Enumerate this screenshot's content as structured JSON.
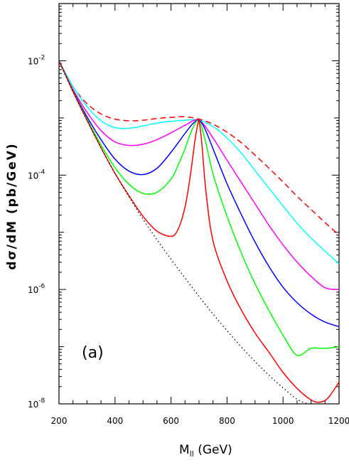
{
  "chart_data": {
    "type": "line",
    "xlabel": "M",
    "xlabel_sub": "ll",
    "xlabel_unit": "(GeV)",
    "ylabel": "dσ/dM (pb/GeV)",
    "annotation": "(a)",
    "xlim": [
      200,
      1200
    ],
    "ylim_log10": [
      -8,
      -1
    ],
    "yscale": "log",
    "grid": false,
    "x_ticks": [
      "200",
      "400",
      "600",
      "800",
      "1000",
      "1200"
    ],
    "y_ticks": [
      {
        "base": "10",
        "exp": "-2",
        "log10": -2
      },
      {
        "base": "10",
        "exp": "-4",
        "log10": -4
      },
      {
        "base": "10",
        "exp": "-6",
        "log10": -6
      },
      {
        "base": "10",
        "exp": "-8",
        "log10": -8
      }
    ],
    "series": [
      {
        "color": "#ff0000",
        "style": "dashed",
        "x": [
          200,
          250,
          300,
          350,
          400,
          450,
          500,
          550,
          600,
          650,
          700,
          750,
          800,
          850,
          900,
          950,
          1000,
          1050,
          1100,
          1150,
          1200
        ],
        "logy": [
          -2.0,
          -2.45,
          -2.75,
          -2.93,
          -3.02,
          -3.05,
          -3.04,
          -3.01,
          -2.99,
          -2.98,
          -3.02,
          -3.11,
          -3.25,
          -3.43,
          -3.65,
          -3.88,
          -4.12,
          -4.37,
          -4.6,
          -4.83,
          -5.05
        ]
      },
      {
        "color": "#00ffff",
        "style": "solid",
        "x": [
          200,
          250,
          300,
          350,
          400,
          450,
          500,
          550,
          600,
          650,
          700,
          750,
          800,
          850,
          900,
          950,
          1000,
          1050,
          1100,
          1150,
          1200
        ],
        "logy": [
          -2.0,
          -2.45,
          -2.8,
          -3.05,
          -3.17,
          -3.18,
          -3.14,
          -3.09,
          -3.06,
          -3.04,
          -3.04,
          -3.15,
          -3.35,
          -3.61,
          -3.92,
          -4.23,
          -4.54,
          -4.84,
          -5.1,
          -5.33,
          -5.55
        ]
      },
      {
        "color": "#ff00ff",
        "style": "solid",
        "x": [
          200,
          250,
          300,
          350,
          400,
          450,
          500,
          550,
          600,
          650,
          700,
          750,
          800,
          850,
          900,
          950,
          1000,
          1050,
          1100,
          1150,
          1200
        ],
        "logy": [
          -2.0,
          -2.5,
          -2.9,
          -3.22,
          -3.42,
          -3.48,
          -3.46,
          -3.38,
          -3.26,
          -3.13,
          -3.04,
          -3.35,
          -3.74,
          -4.12,
          -4.5,
          -4.88,
          -5.22,
          -5.52,
          -5.77,
          -5.97,
          -6.0
        ]
      },
      {
        "color": "#0000ff",
        "style": "solid",
        "x": [
          200,
          250,
          300,
          350,
          400,
          450,
          500,
          550,
          600,
          650,
          680,
          700,
          720,
          750,
          800,
          850,
          900,
          950,
          1000,
          1050,
          1100,
          1150,
          1200
        ],
        "logy": [
          -2.0,
          -2.52,
          -2.98,
          -3.38,
          -3.72,
          -3.93,
          -3.99,
          -3.88,
          -3.6,
          -3.27,
          -3.09,
          -3.04,
          -3.18,
          -3.54,
          -4.15,
          -4.68,
          -5.17,
          -5.6,
          -5.96,
          -6.23,
          -6.43,
          -6.57,
          -6.65
        ]
      },
      {
        "color": "#00ff00",
        "style": "solid",
        "x": [
          200,
          250,
          300,
          350,
          400,
          450,
          500,
          550,
          600,
          625,
          650,
          675,
          700,
          725,
          750,
          800,
          850,
          900,
          950,
          1000,
          1050,
          1100,
          1150,
          1200
        ],
        "logy": [
          -2.0,
          -2.53,
          -3.02,
          -3.47,
          -3.87,
          -4.16,
          -4.32,
          -4.3,
          -4.07,
          -3.83,
          -3.54,
          -3.21,
          -3.05,
          -3.45,
          -3.98,
          -4.72,
          -5.35,
          -5.9,
          -6.37,
          -6.8,
          -7.15,
          -7.03,
          -7.03,
          -7.0
        ]
      },
      {
        "color": "#ff0000",
        "style": "solid",
        "x": [
          200,
          250,
          300,
          350,
          400,
          450,
          500,
          550,
          600,
          625,
          650,
          670,
          685,
          695,
          700,
          710,
          725,
          750,
          800,
          850,
          900,
          950,
          1000,
          1050,
          1100,
          1130,
          1160,
          1200
        ],
        "logy": [
          -2.0,
          -2.54,
          -3.04,
          -3.52,
          -3.97,
          -4.36,
          -4.72,
          -4.98,
          -5.07,
          -4.95,
          -4.56,
          -3.97,
          -3.41,
          -3.12,
          -3.05,
          -3.45,
          -4.3,
          -5.15,
          -5.85,
          -6.35,
          -6.76,
          -7.1,
          -7.45,
          -7.73,
          -7.93,
          -7.97,
          -7.9,
          -7.62
        ]
      },
      {
        "color": "#000000",
        "style": "dotted",
        "x": [
          200,
          250,
          300,
          350,
          400,
          450,
          500,
          550,
          600,
          650,
          700,
          750,
          800,
          850,
          900,
          950,
          1000,
          1050,
          1090
        ],
        "logy": [
          -2.0,
          -2.54,
          -3.04,
          -3.52,
          -3.97,
          -4.38,
          -4.77,
          -5.13,
          -5.47,
          -5.8,
          -6.12,
          -6.43,
          -6.72,
          -7.0,
          -7.26,
          -7.5,
          -7.72,
          -7.92,
          -8.0
        ]
      }
    ]
  }
}
